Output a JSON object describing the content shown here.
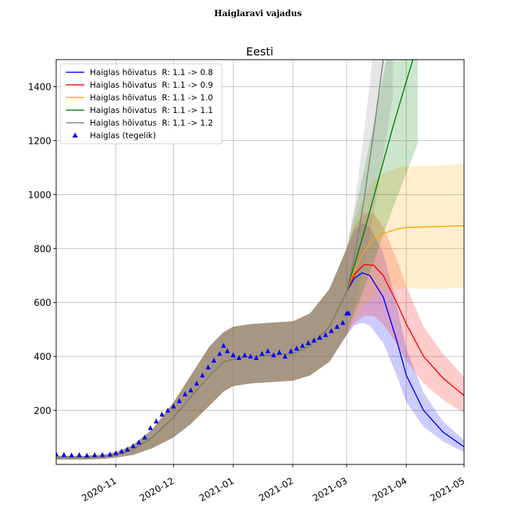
{
  "page_title": "Haiglaravi vajadus",
  "chart_data": {
    "type": "line",
    "title": "Eesti",
    "xlabel": "",
    "ylabel": "",
    "x_range": [
      "2020-10-01",
      "2021-05-01"
    ],
    "ylim": [
      0,
      1500
    ],
    "grid": true,
    "legend_position": "top-left",
    "x_ticks": [
      "2020-11",
      "2020-12",
      "2021-01",
      "2021-02",
      "2021-03",
      "2021-04",
      "2021-05"
    ],
    "x_tick_dates": [
      "2020-11-01",
      "2020-12-01",
      "2021-01-01",
      "2021-02-01",
      "2021-03-01",
      "2021-04-01",
      "2021-05-01"
    ],
    "y_ticks": [
      200,
      400,
      600,
      800,
      1000,
      1200,
      1400
    ],
    "history": {
      "x": [
        "2020-10-01",
        "2020-10-15",
        "2020-10-25",
        "2020-11-01",
        "2020-11-10",
        "2020-11-20",
        "2020-12-01",
        "2020-12-10",
        "2020-12-20",
        "2020-12-27",
        "2021-01-01",
        "2021-01-10",
        "2021-01-20",
        "2021-02-01",
        "2021-02-10",
        "2021-02-20",
        "2021-03-01"
      ],
      "mean": [
        25,
        25,
        28,
        35,
        55,
        100,
        175,
        250,
        330,
        380,
        390,
        400,
        405,
        410,
        440,
        510,
        640
      ],
      "lower": [
        18,
        18,
        20,
        25,
        35,
        60,
        100,
        150,
        220,
        270,
        290,
        300,
        305,
        310,
        330,
        380,
        480
      ],
      "upper": [
        32,
        32,
        36,
        45,
        72,
        130,
        230,
        330,
        440,
        490,
        510,
        520,
        525,
        530,
        560,
        650,
        800
      ]
    },
    "series": [
      {
        "name": "Haiglas hõivatus  R: 1.1 -> 0.8",
        "color": "#0000ff",
        "x": [
          "2021-03-01",
          "2021-03-05",
          "2021-03-09",
          "2021-03-13",
          "2021-03-20",
          "2021-03-27",
          "2021-04-01",
          "2021-04-10",
          "2021-04-20",
          "2021-05-01"
        ],
        "values": [
          640,
          690,
          710,
          700,
          620,
          460,
          330,
          200,
          120,
          65
        ],
        "lower": [
          480,
          515,
          525,
          515,
          450,
          330,
          230,
          140,
          85,
          45
        ],
        "upper": [
          800,
          865,
          895,
          880,
          785,
          590,
          430,
          265,
          160,
          90
        ]
      },
      {
        "name": "Haiglas hõivatus  R: 1.1 -> 0.9",
        "color": "#ff0000",
        "x": [
          "2021-03-01",
          "2021-03-05",
          "2021-03-10",
          "2021-03-15",
          "2021-03-20",
          "2021-03-27",
          "2021-04-01",
          "2021-04-10",
          "2021-04-20",
          "2021-05-01"
        ],
        "values": [
          640,
          705,
          740,
          738,
          700,
          600,
          520,
          400,
          320,
          255
        ],
        "lower": [
          480,
          525,
          550,
          550,
          520,
          445,
          385,
          300,
          240,
          190
        ],
        "upper": [
          800,
          880,
          930,
          930,
          880,
          760,
          660,
          510,
          410,
          325
        ]
      },
      {
        "name": "Haiglas hõivatus  R: 1.1 -> 1.0",
        "color": "#ffa500",
        "x": [
          "2021-03-01",
          "2021-03-05",
          "2021-03-10",
          "2021-03-15",
          "2021-03-20",
          "2021-03-27",
          "2021-04-01",
          "2021-04-10",
          "2021-04-20",
          "2021-05-01"
        ],
        "values": [
          640,
          720,
          790,
          835,
          855,
          872,
          878,
          880,
          882,
          885
        ],
        "lower": [
          480,
          540,
          590,
          625,
          640,
          650,
          655,
          650,
          652,
          655
        ],
        "upper": [
          800,
          900,
          990,
          1050,
          1080,
          1098,
          1105,
          1105,
          1108,
          1115
        ]
      },
      {
        "name": "Haiglas hõivatus  R: 1.1 -> 1.1",
        "color": "#008000",
        "x": [
          "2021-03-01",
          "2021-03-05",
          "2021-03-10",
          "2021-03-15",
          "2021-03-20",
          "2021-03-25",
          "2021-04-01",
          "2021-04-07"
        ],
        "values": [
          640,
          740,
          860,
          990,
          1120,
          1250,
          1420,
          1560
        ],
        "lower": [
          480,
          560,
          650,
          750,
          850,
          950,
          1080,
          1190
        ],
        "upper": [
          800,
          930,
          1090,
          1260,
          1440,
          1620,
          1860,
          2040
        ]
      },
      {
        "name": "Haiglas hõivatus  R: 1.1 -> 1.2",
        "color": "#808080",
        "x": [
          "2021-03-01",
          "2021-03-05",
          "2021-03-10",
          "2021-03-15",
          "2021-03-20",
          "2021-03-25"
        ],
        "values": [
          640,
          770,
          980,
          1230,
          1500,
          1800
        ],
        "lower": [
          480,
          580,
          740,
          930,
          1140,
          1370
        ],
        "upper": [
          800,
          960,
          1230,
          1540,
          1880,
          2260
        ]
      }
    ],
    "actual": {
      "name": "Haiglas (tegelik)",
      "color": "#0000ff",
      "x": [
        "2020-10-01",
        "2020-10-05",
        "2020-10-09",
        "2020-10-13",
        "2020-10-17",
        "2020-10-21",
        "2020-10-25",
        "2020-10-29",
        "2020-11-01",
        "2020-11-04",
        "2020-11-07",
        "2020-11-10",
        "2020-11-13",
        "2020-11-16",
        "2020-11-19",
        "2020-11-22",
        "2020-11-25",
        "2020-11-28",
        "2020-12-01",
        "2020-12-04",
        "2020-12-07",
        "2020-12-10",
        "2020-12-13",
        "2020-12-16",
        "2020-12-19",
        "2020-12-22",
        "2020-12-25",
        "2020-12-27",
        "2020-12-29",
        "2021-01-01",
        "2021-01-04",
        "2021-01-07",
        "2021-01-10",
        "2021-01-13",
        "2021-01-16",
        "2021-01-19",
        "2021-01-22",
        "2021-01-25",
        "2021-01-28",
        "2021-01-31",
        "2021-02-03",
        "2021-02-06",
        "2021-02-09",
        "2021-02-12",
        "2021-02-15",
        "2021-02-18",
        "2021-02-21",
        "2021-02-24",
        "2021-02-27",
        "2021-03-01",
        "2021-03-02"
      ],
      "values": [
        38,
        36,
        34,
        35,
        33,
        35,
        36,
        37,
        42,
        48,
        55,
        68,
        82,
        100,
        135,
        160,
        185,
        200,
        215,
        235,
        260,
        275,
        300,
        330,
        360,
        385,
        410,
        440,
        420,
        405,
        395,
        405,
        400,
        395,
        410,
        420,
        405,
        415,
        400,
        420,
        430,
        440,
        450,
        460,
        470,
        480,
        495,
        510,
        525,
        560,
        560
      ]
    }
  }
}
